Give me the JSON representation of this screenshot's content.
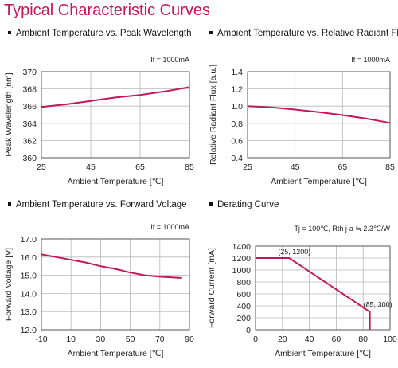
{
  "page_title": "Typical Characteristic Curves",
  "line_color": "#c2185b",
  "chart_data": [
    {
      "type": "line",
      "title": "Ambient Temperature vs. Peak Wavelength",
      "condition": "If = 1000mA",
      "xlabel": "Ambient Temperature [℃]",
      "ylabel": "Peak Wavelength [nm]",
      "xlim": [
        25,
        85
      ],
      "ylim": [
        360,
        370
      ],
      "xticks": [
        "25",
        "45",
        "65",
        "85"
      ],
      "yticks": [
        "370",
        "368",
        "366",
        "364",
        "362",
        "360"
      ],
      "series": [
        {
          "x": [
            25,
            35,
            45,
            55,
            65,
            75,
            85
          ],
          "y": [
            365.9,
            366.2,
            366.6,
            367.0,
            367.3,
            367.7,
            368.2
          ]
        }
      ]
    },
    {
      "type": "line",
      "title": "Ambient Temperature vs. Relative Radiant Flux",
      "condition": "If = 1000mA",
      "xlabel": "Ambient Temperature [℃]",
      "ylabel": "Relative Radiant Flux [a.u.]",
      "xlim": [
        25,
        85
      ],
      "ylim": [
        0.4,
        1.4
      ],
      "xticks": [
        "25",
        "45",
        "65",
        "85"
      ],
      "yticks": [
        "1.4",
        "1.2",
        "1.0",
        "0.8",
        "0.6",
        "0.4"
      ],
      "series": [
        {
          "x": [
            25,
            35,
            45,
            55,
            65,
            75,
            85
          ],
          "y": [
            1.0,
            0.985,
            0.96,
            0.93,
            0.895,
            0.855,
            0.805
          ]
        }
      ]
    },
    {
      "type": "line",
      "title": "Ambient Temperature vs. Forward Voltage",
      "condition": "If = 1000mA",
      "xlabel": "Ambient Temperature [℃]",
      "ylabel": "Forward Voltage [V]",
      "xlim": [
        -10,
        90
      ],
      "ylim": [
        12.0,
        17.0
      ],
      "xticks": [
        "-10",
        "10",
        "30",
        "50",
        "70",
        "90"
      ],
      "yticks": [
        "17.0",
        "16.0",
        "15.0",
        "14.0",
        "13.0",
        "12.0"
      ],
      "series": [
        {
          "x": [
            -10,
            0,
            10,
            20,
            30,
            40,
            50,
            60,
            70,
            85
          ],
          "y": [
            16.15,
            16.0,
            15.85,
            15.7,
            15.5,
            15.35,
            15.15,
            15.0,
            14.92,
            14.85
          ]
        }
      ]
    },
    {
      "type": "line",
      "title": "Derating Curve",
      "condition": "Tj = 100℃, Rth j-a ≒ 2.3℃/W",
      "xlabel": "Ambient Temperature [℃]",
      "ylabel": "Forward Current [mA]",
      "xlim": [
        0,
        100
      ],
      "ylim": [
        0,
        1400
      ],
      "xticks": [
        "0",
        "20",
        "40",
        "60",
        "80",
        "100"
      ],
      "yticks": [
        "1400",
        "1200",
        "1000",
        "800",
        "600",
        "400",
        "200",
        "0"
      ],
      "series": [
        {
          "x": [
            0,
            25,
            85,
            85
          ],
          "y": [
            1200,
            1200,
            300,
            0
          ]
        }
      ],
      "annotations": [
        {
          "text": "(25, 1200)",
          "x": 25,
          "y": 1200
        },
        {
          "text": "(85, 300)",
          "x": 85,
          "y": 300
        }
      ]
    }
  ]
}
